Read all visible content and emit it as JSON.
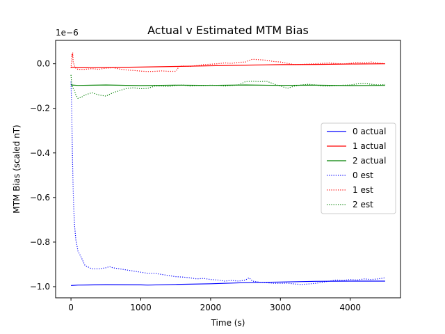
{
  "chart_data": {
    "type": "line",
    "title": "Actual v Estimated MTM Bias",
    "xlabel": "Time (s)",
    "ylabel": "MTM Bias (scaled nT)",
    "y_offset_label": "1e−6",
    "xlim": [
      -220,
      4720
    ],
    "ylim": [
      -1.05,
      0.105
    ],
    "xticks": [
      0,
      1000,
      2000,
      3000,
      4000
    ],
    "xtick_labels": [
      "0",
      "1000",
      "2000",
      "3000",
      "4000"
    ],
    "yticks": [
      0.0,
      -0.2,
      -0.4,
      -0.6,
      -0.8,
      -1.0
    ],
    "ytick_labels": [
      "0.0",
      "−0.2",
      "−0.4",
      "−0.6",
      "−0.8",
      "−1.0"
    ],
    "grid": false,
    "legend_position": "center-right",
    "series": [
      {
        "name": "0 actual",
        "color": "#0000ff",
        "style": "solid",
        "x": [
          0,
          100,
          500,
          1000,
          1100,
          1500,
          2000,
          2500,
          3000,
          3500,
          4000,
          4500
        ],
        "y": [
          -0.995,
          -0.993,
          -0.991,
          -0.992,
          -0.993,
          -0.99,
          -0.987,
          -0.982,
          -0.979,
          -0.976,
          -0.975,
          -0.975
        ]
      },
      {
        "name": "1 actual",
        "color": "#ff0000",
        "style": "solid",
        "x": [
          0,
          100,
          500,
          1000,
          1500,
          2000,
          2500,
          3000,
          3500,
          4000,
          4500
        ],
        "y": [
          -0.015,
          -0.018,
          -0.017,
          -0.015,
          -0.012,
          -0.009,
          -0.006,
          -0.004,
          -0.003,
          -0.001,
          0.0
        ]
      },
      {
        "name": "2 actual",
        "color": "#008000",
        "style": "solid",
        "x": [
          0,
          100,
          500,
          1000,
          1500,
          2000,
          2500,
          3000,
          3500,
          4000,
          4500
        ],
        "y": [
          -0.095,
          -0.097,
          -0.095,
          -0.098,
          -0.096,
          -0.097,
          -0.095,
          -0.097,
          -0.096,
          -0.098,
          -0.097
        ]
      },
      {
        "name": "0 est",
        "color": "#0000ff",
        "style": "dotted",
        "x": [
          0,
          10,
          20,
          30,
          40,
          50,
          70,
          100,
          150,
          200,
          300,
          400,
          500,
          550,
          600,
          700,
          800,
          900,
          1000,
          1100,
          1200,
          1300,
          1400,
          1500,
          1600,
          1700,
          1800,
          1900,
          2000,
          2100,
          2200,
          2300,
          2400,
          2500,
          2550,
          2600,
          2700,
          2800,
          2900,
          3000,
          3100,
          3200,
          3300,
          3400,
          3500,
          3600,
          3700,
          3800,
          3900,
          4000,
          4100,
          4200,
          4300,
          4400,
          4500
        ],
        "y": [
          -0.08,
          -0.2,
          -0.4,
          -0.55,
          -0.65,
          -0.72,
          -0.79,
          -0.84,
          -0.87,
          -0.905,
          -0.92,
          -0.92,
          -0.915,
          -0.91,
          -0.915,
          -0.92,
          -0.925,
          -0.93,
          -0.935,
          -0.94,
          -0.94,
          -0.945,
          -0.95,
          -0.955,
          -0.957,
          -0.96,
          -0.965,
          -0.963,
          -0.968,
          -0.97,
          -0.975,
          -0.972,
          -0.975,
          -0.97,
          -0.96,
          -0.975,
          -0.98,
          -0.982,
          -0.985,
          -0.985,
          -0.984,
          -0.988,
          -0.99,
          -0.988,
          -0.985,
          -0.98,
          -0.975,
          -0.97,
          -0.972,
          -0.968,
          -0.97,
          -0.965,
          -0.968,
          -0.965,
          -0.96
        ]
      },
      {
        "name": "1 est",
        "color": "#ff0000",
        "style": "dotted",
        "x": [
          0,
          10,
          15,
          20,
          25,
          30,
          40,
          50,
          70,
          100,
          200,
          300,
          400,
          500,
          600,
          700,
          800,
          900,
          1000,
          1100,
          1200,
          1300,
          1400,
          1500,
          1550,
          1600,
          1700,
          1800,
          1900,
          2000,
          2100,
          2200,
          2300,
          2400,
          2500,
          2550,
          2600,
          2700,
          2800,
          2900,
          3000,
          3100,
          3200,
          3300,
          3400,
          3500,
          3600,
          3700,
          3800,
          3900,
          4000,
          4100,
          4200,
          4300,
          4400,
          4500
        ],
        "y": [
          -0.02,
          0.02,
          0.045,
          0.03,
          0.05,
          0.01,
          0.0,
          -0.01,
          -0.02,
          -0.025,
          -0.025,
          -0.022,
          -0.025,
          -0.02,
          -0.018,
          -0.024,
          -0.028,
          -0.03,
          -0.033,
          -0.035,
          -0.034,
          -0.032,
          -0.034,
          -0.034,
          -0.012,
          -0.01,
          -0.012,
          -0.008,
          -0.004,
          -0.002,
          0.0,
          0.004,
          0.002,
          0.006,
          0.008,
          0.015,
          0.02,
          0.018,
          0.016,
          0.01,
          0.008,
          0.002,
          -0.004,
          -0.003,
          -0.001,
          0.0,
          0.002,
          0.004,
          0.001,
          -0.001,
          0.002,
          0.006,
          0.004,
          0.008,
          0.004,
          0.0
        ]
      },
      {
        "name": "2 est",
        "color": "#008000",
        "style": "dotted",
        "x": [
          0,
          10,
          20,
          30,
          50,
          70,
          100,
          150,
          200,
          300,
          400,
          500,
          600,
          700,
          800,
          900,
          1000,
          1100,
          1200,
          1300,
          1400,
          1500,
          1600,
          1700,
          1800,
          1900,
          2000,
          2100,
          2200,
          2300,
          2400,
          2500,
          2600,
          2700,
          2800,
          2900,
          3000,
          3100,
          3200,
          3300,
          3400,
          3500,
          3600,
          3700,
          3800,
          3900,
          4000,
          4100,
          4200,
          4300,
          4400,
          4500
        ],
        "y": [
          -0.05,
          -0.09,
          -0.1,
          -0.11,
          -0.12,
          -0.14,
          -0.155,
          -0.15,
          -0.14,
          -0.13,
          -0.14,
          -0.145,
          -0.13,
          -0.12,
          -0.11,
          -0.108,
          -0.112,
          -0.11,
          -0.1,
          -0.1,
          -0.102,
          -0.098,
          -0.095,
          -0.1,
          -0.098,
          -0.098,
          -0.096,
          -0.097,
          -0.1,
          -0.098,
          -0.095,
          -0.08,
          -0.078,
          -0.08,
          -0.078,
          -0.09,
          -0.1,
          -0.11,
          -0.1,
          -0.095,
          -0.092,
          -0.095,
          -0.1,
          -0.1,
          -0.098,
          -0.096,
          -0.095,
          -0.09,
          -0.088,
          -0.092,
          -0.095,
          -0.093
        ]
      }
    ]
  }
}
